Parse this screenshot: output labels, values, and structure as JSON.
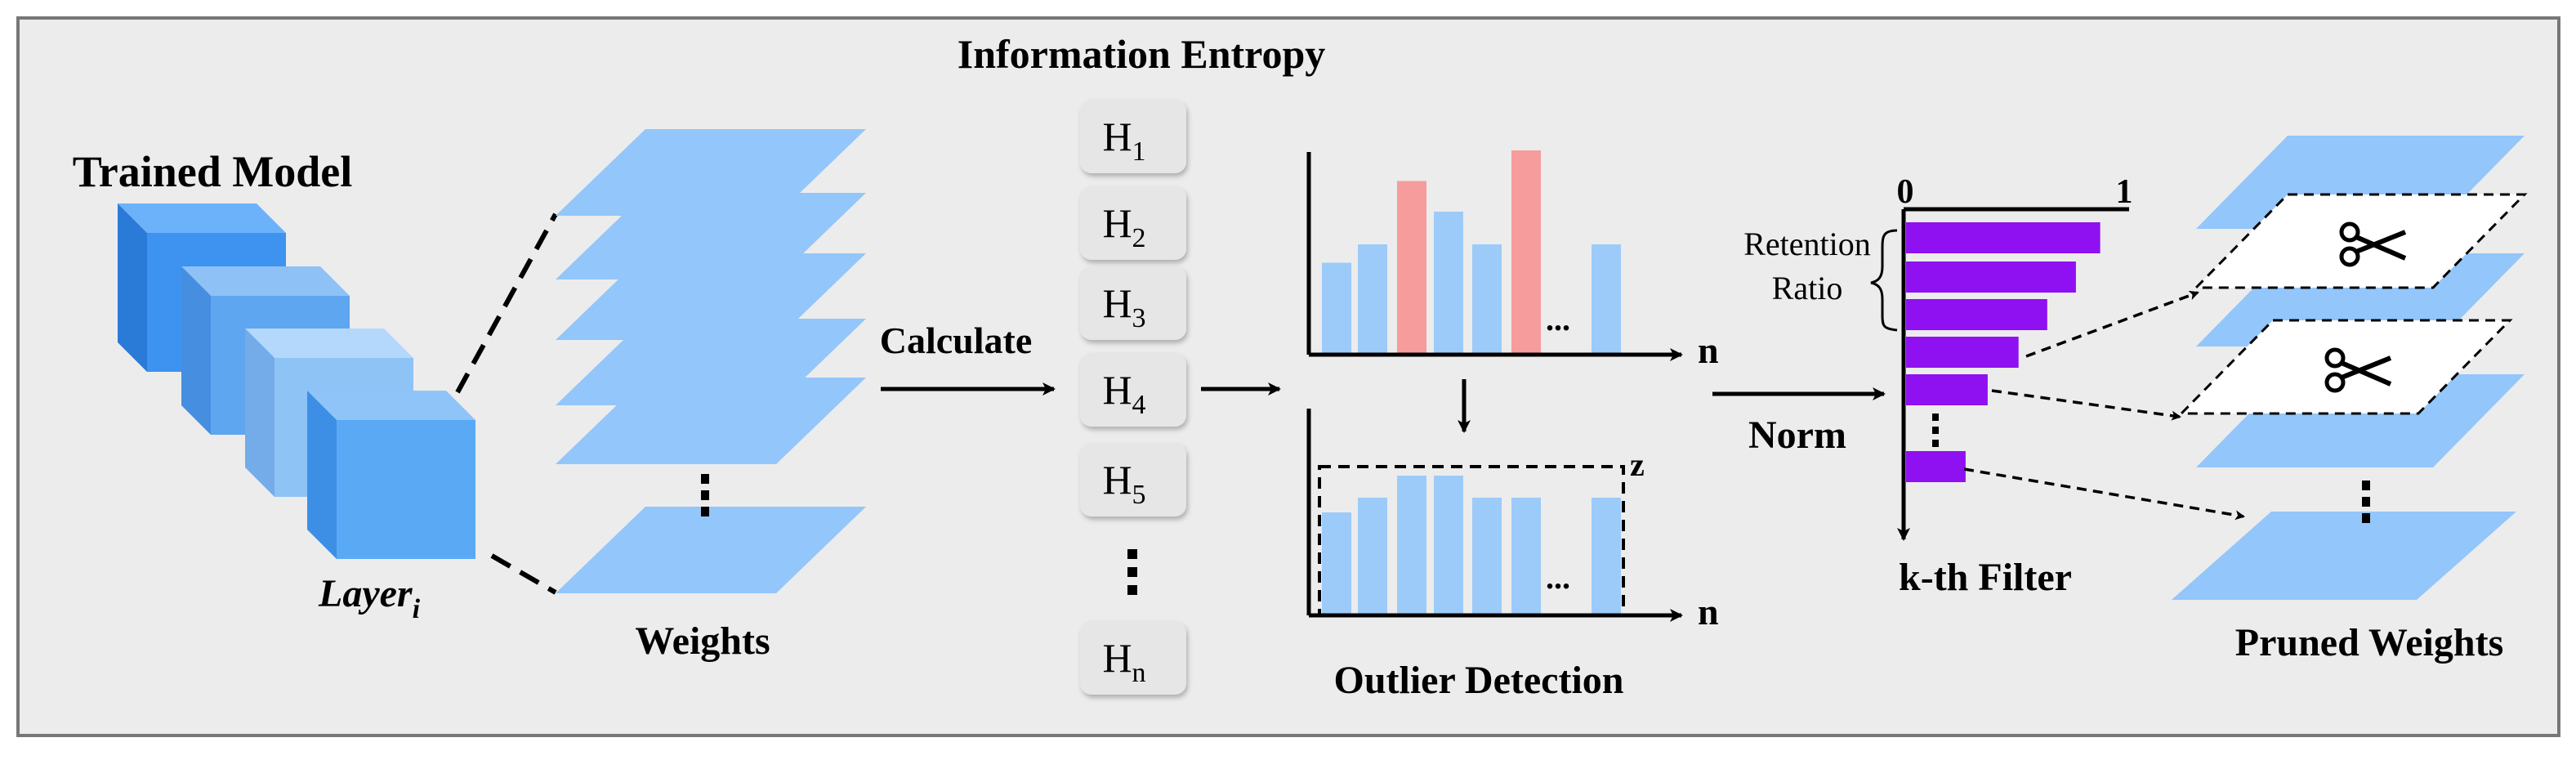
{
  "title": "Information Entropy",
  "trained_model": {
    "label": "Trained Model",
    "layer_label": "Layer",
    "layer_sub": "i"
  },
  "weights": {
    "label": "Weights"
  },
  "calculate": {
    "label": "Calculate"
  },
  "entropy_items": [
    {
      "base": "H",
      "sub": "1"
    },
    {
      "base": "H",
      "sub": "2"
    },
    {
      "base": "H",
      "sub": "3"
    },
    {
      "base": "H",
      "sub": "4"
    },
    {
      "base": "H",
      "sub": "5"
    },
    {
      "base": "H",
      "sub": "n"
    }
  ],
  "outlier": {
    "label": "Outlier Detection",
    "axis_n_top": "n",
    "axis_n_bottom": "n",
    "z_label": "z",
    "ellipsis": "...",
    "top_bars": [
      0.45,
      0.54,
      0.85,
      0.7,
      0.54,
      1.0,
      0.54
    ],
    "top_outliers": [
      false,
      false,
      true,
      false,
      false,
      true,
      false
    ],
    "bottom_bars": [
      0.7,
      0.8,
      0.95,
      0.95,
      0.8,
      0.8,
      0.8
    ]
  },
  "norm": {
    "label": "Norm"
  },
  "filter": {
    "axis_start": "0",
    "axis_end": "1",
    "retention_line1": "Retention",
    "retention_line2": "Ratio",
    "k_label": "k-th Filter",
    "ratios": [
      0.88,
      0.77,
      0.64,
      0.51,
      0.37,
      0.27
    ],
    "bar_color": "#8f10f0"
  },
  "pruned": {
    "label": "Pruned Weights"
  },
  "colors": {
    "background": "#ececec",
    "plane": "#93c6fa",
    "bar_blue": "#9ccbf9",
    "bar_red": "#f79c9c",
    "cube_front": "#5aa9f5",
    "cube_top": "#8fc4f8",
    "cube_side": "#3d8fe6"
  }
}
